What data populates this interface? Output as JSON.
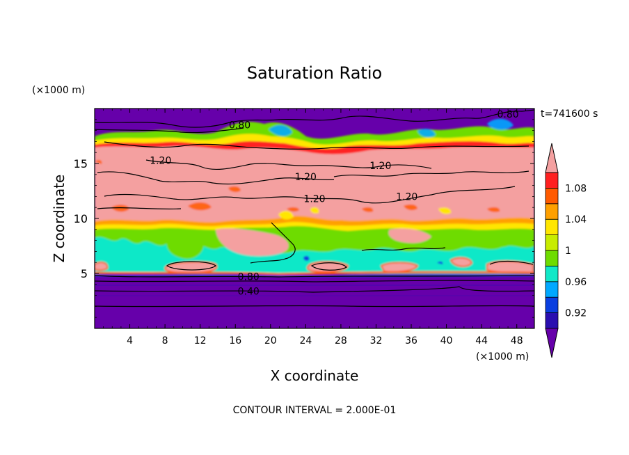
{
  "chart_data": {
    "type": "heatmap",
    "title": "Saturation Ratio",
    "xlabel": "X coordinate",
    "ylabel": "Z coordinate",
    "x_unit": "(×1000 m)",
    "y_unit": "(×1000 m)",
    "time_label": "t=741600 s",
    "footer": "CONTOUR INTERVAL = 2.000E-01",
    "xlim": [
      0,
      50
    ],
    "ylim": [
      0,
      20
    ],
    "xticks": [
      4,
      8,
      12,
      16,
      20,
      24,
      28,
      32,
      36,
      40,
      44,
      48
    ],
    "yticks": [
      5,
      10,
      15
    ],
    "colorbar": {
      "levels": [
        0.9,
        0.92,
        0.94,
        0.96,
        0.98,
        1.0,
        1.02,
        1.04,
        1.06,
        1.08,
        1.1
      ],
      "tick_labels": [
        "0.92",
        "0.96",
        "1",
        "1.04",
        "1.08"
      ],
      "tick_values": [
        0.92,
        0.96,
        1.0,
        1.04,
        1.08
      ],
      "colors": [
        "#6600aa",
        "#2a0fb0",
        "#0a3fe0",
        "#00a8ff",
        "#10e8c8",
        "#6edc00",
        "#c8ec00",
        "#ffe600",
        "#ffa000",
        "#ff5a00",
        "#ff2020",
        "#f4a0a0"
      ]
    },
    "contour_labels": [
      {
        "text": "0.80",
        "x": 16.5,
        "y": 18.5
      },
      {
        "text": "0.80",
        "x": 47.0,
        "y": 19.5
      },
      {
        "text": "1.20",
        "x": 7.5,
        "y": 15.3
      },
      {
        "text": "1.20",
        "x": 24.0,
        "y": 13.8
      },
      {
        "text": "1.20",
        "x": 25.0,
        "y": 11.8
      },
      {
        "text": "1.20",
        "x": 32.5,
        "y": 14.8
      },
      {
        "text": "1.20",
        "x": 35.5,
        "y": 12.0
      },
      {
        "text": "0.80",
        "x": 17.5,
        "y": 4.7
      },
      {
        "text": "0.40",
        "x": 17.5,
        "y": 3.4
      }
    ]
  }
}
